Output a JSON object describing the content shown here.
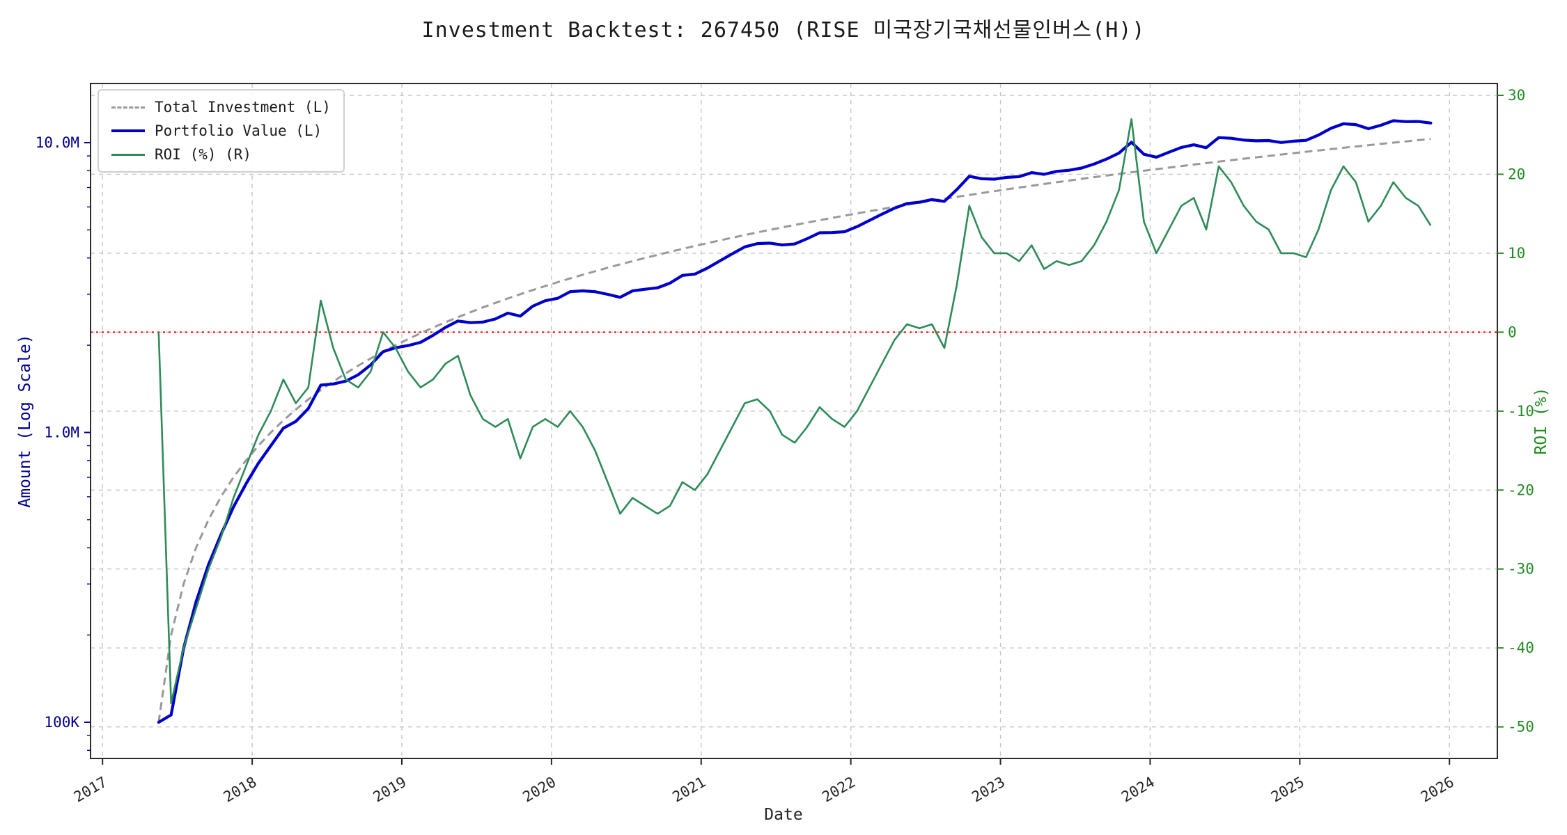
{
  "title": "Investment Backtest: 267450 (RISE 미국장기국채선물인버스(H))",
  "axes": {
    "x_label": "Date",
    "y_left_label": "Amount (Log Scale)",
    "y_right_label": "ROI (%)",
    "x_ticks": [
      2017,
      2018,
      2019,
      2020,
      2021,
      2022,
      2023,
      2024,
      2025,
      2026
    ],
    "x_range": [
      2016.92,
      2026.32
    ],
    "y_left_ticks": [
      {
        "value": 100000,
        "label": "100K"
      },
      {
        "value": 1000000,
        "label": "1.0M"
      },
      {
        "value": 10000000,
        "label": "10.0M"
      }
    ],
    "y_left_range_log": [
      75000,
      16000000
    ],
    "y_right_ticks": [
      30,
      20,
      10,
      0,
      -10,
      -20,
      -30,
      -40,
      -50
    ],
    "y_right_range": [
      -54,
      31.5
    ],
    "grid": true
  },
  "colors": {
    "total_investment": "#999999",
    "portfolio_value": "#0000cd",
    "roi": "#2e8b57",
    "zero_line": "#ff0000",
    "grid": "#c6c6c6",
    "left_axis_text": "#00008b",
    "right_axis_text": "#228b22",
    "x_axis_text": "#262626",
    "spine": "#2a2a2a"
  },
  "legend": [
    {
      "label": "Total Investment (L)",
      "style": "dashed",
      "color": "#999999"
    },
    {
      "label": "Portfolio Value (L)",
      "style": "solid",
      "color": "#0000cd"
    },
    {
      "label": "ROI (%) (R)",
      "style": "solid",
      "color": "#2e8b57"
    }
  ],
  "chart_data": {
    "type": "line",
    "title": "Investment Backtest: 267450 (RISE 미국장기국채선물인버스(H))",
    "xlabel": "Date",
    "ylabel_left": "Amount (Log Scale)",
    "ylabel_right": "ROI (%)",
    "zero_reference_right": 0,
    "dates": [
      "2017-05",
      "2017-06",
      "2017-07",
      "2017-08",
      "2017-09",
      "2017-10",
      "2017-11",
      "2017-12",
      "2018-01",
      "2018-02",
      "2018-03",
      "2018-04",
      "2018-05",
      "2018-06",
      "2018-07",
      "2018-08",
      "2018-09",
      "2018-10",
      "2018-11",
      "2018-12",
      "2019-01",
      "2019-02",
      "2019-03",
      "2019-04",
      "2019-05",
      "2019-06",
      "2019-07",
      "2019-08",
      "2019-09",
      "2019-10",
      "2019-11",
      "2019-12",
      "2020-01",
      "2020-02",
      "2020-03",
      "2020-04",
      "2020-05",
      "2020-06",
      "2020-07",
      "2020-08",
      "2020-09",
      "2020-10",
      "2020-11",
      "2020-12",
      "2021-01",
      "2021-02",
      "2021-03",
      "2021-04",
      "2021-05",
      "2021-06",
      "2021-07",
      "2021-08",
      "2021-09",
      "2021-10",
      "2021-11",
      "2021-12",
      "2022-01",
      "2022-02",
      "2022-03",
      "2022-04",
      "2022-05",
      "2022-06",
      "2022-07",
      "2022-08",
      "2022-09",
      "2022-10",
      "2022-11",
      "2022-12",
      "2023-01",
      "2023-02",
      "2023-03",
      "2023-04",
      "2023-05",
      "2023-06",
      "2023-07",
      "2023-08",
      "2023-09",
      "2023-10",
      "2023-11",
      "2023-12",
      "2024-01",
      "2024-02",
      "2024-03",
      "2024-04",
      "2024-05",
      "2024-06",
      "2024-07",
      "2024-08",
      "2024-09",
      "2024-10",
      "2024-11",
      "2024-12",
      "2025-01",
      "2025-02",
      "2025-03",
      "2025-04",
      "2025-05",
      "2025-06",
      "2025-07",
      "2025-08",
      "2025-09",
      "2025-10",
      "2025-11"
    ],
    "series": [
      {
        "name": "Total Investment (L)",
        "axis": "left",
        "values": [
          100000,
          200000,
          300000,
          400000,
          500000,
          600000,
          700000,
          800000,
          900000,
          1000000,
          1100000,
          1200000,
          1300000,
          1400000,
          1500000,
          1600000,
          1700000,
          1800000,
          1900000,
          2000000,
          2100000,
          2200000,
          2300000,
          2400000,
          2500000,
          2600000,
          2700000,
          2800000,
          2900000,
          3000000,
          3100000,
          3200000,
          3300000,
          3400000,
          3500000,
          3600000,
          3700000,
          3800000,
          3900000,
          4000000,
          4100000,
          4200000,
          4300000,
          4400000,
          4500000,
          4600000,
          4700000,
          4800000,
          4900000,
          5000000,
          5100000,
          5200000,
          5300000,
          5400000,
          5500000,
          5600000,
          5700000,
          5800000,
          5900000,
          6000000,
          6100000,
          6200000,
          6300000,
          6400000,
          6500000,
          6600000,
          6700000,
          6800000,
          6900000,
          7000000,
          7100000,
          7200000,
          7300000,
          7400000,
          7500000,
          7600000,
          7700000,
          7800000,
          7900000,
          8000000,
          8100000,
          8200000,
          8300000,
          8400000,
          8500000,
          8600000,
          8700000,
          8800000,
          8900000,
          9000000,
          9100000,
          9200000,
          9300000,
          9400000,
          9500000,
          9600000,
          9700000,
          9800000,
          9900000,
          10000000,
          10100000,
          10200000,
          10300000
        ]
      },
      {
        "name": "Portfolio Value (L)",
        "axis": "left",
        "values": [
          100000,
          106000,
          180000,
          260000,
          350000,
          444000,
          553000,
          664000,
          783000,
          900000,
          1034000,
          1092000,
          1209000,
          1456000,
          1470000,
          1504000,
          1581000,
          1710000,
          1900000,
          1960000,
          1995000,
          2046000,
          2162000,
          2304000,
          2425000,
          2392000,
          2403000,
          2464000,
          2581000,
          2520000,
          2728000,
          2848000,
          2904000,
          3060000,
          3080000,
          3060000,
          2997000,
          2926000,
          3081000,
          3120000,
          3157000,
          3276000,
          3483000,
          3520000,
          3690000,
          3910000,
          4136000,
          4368000,
          4484000,
          4500000,
          4437000,
          4472000,
          4664000,
          4887000,
          4895000,
          4928000,
          5130000,
          5394000,
          5664000,
          5940000,
          6161000,
          6231000,
          6363000,
          6272000,
          6890000,
          7656000,
          7504000,
          7480000,
          7590000,
          7630000,
          7881000,
          7776000,
          7957000,
          8029000,
          8175000,
          8436000,
          8778000,
          9204000,
          10033000,
          9120000,
          8910000,
          9266000,
          9628000,
          9828000,
          9605000,
          10406000,
          10353000,
          10208000,
          10146000,
          10170000,
          10010000,
          10120000,
          10184000,
          10622000,
          11210000,
          11616000,
          11543000,
          11172000,
          11484000,
          11900000,
          11817000,
          11832000,
          11691000
        ]
      },
      {
        "name": "ROI (%) (R)",
        "axis": "right",
        "values": [
          0,
          -47,
          -40,
          -35,
          -30,
          -26,
          -21,
          -17,
          -13,
          -10,
          -6,
          -9,
          -7,
          4,
          -2,
          -6,
          -7,
          -5,
          0,
          -2,
          -5,
          -7,
          -6,
          -4,
          -3,
          -8,
          -11,
          -12,
          -11,
          -16,
          -12,
          -11,
          -12,
          -10,
          -12,
          -15,
          -19,
          -23,
          -21,
          -22,
          -23,
          -22,
          -19,
          -20,
          -18,
          -15,
          -12,
          -9,
          -8.5,
          -10,
          -13,
          -14,
          -12,
          -9.5,
          -11,
          -12,
          -10,
          -7,
          -4,
          -1,
          1,
          0.5,
          1,
          -2,
          6,
          16,
          12,
          10,
          10,
          9,
          11,
          8,
          9,
          8.5,
          9,
          11,
          14,
          18,
          27,
          14,
          10,
          13,
          16,
          17,
          13,
          21,
          19,
          16,
          14,
          13,
          10,
          10,
          9.5,
          13,
          18,
          21,
          19,
          14,
          16,
          19,
          17,
          16,
          13.5
        ]
      }
    ]
  }
}
